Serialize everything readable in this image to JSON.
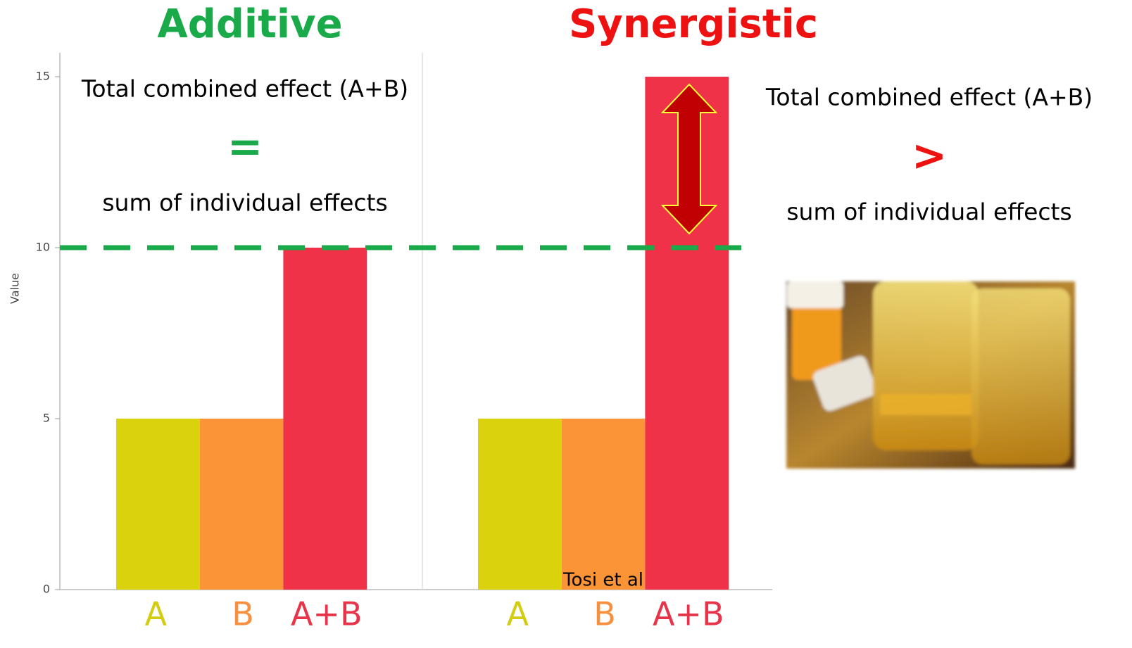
{
  "chart_data": {
    "type": "bar",
    "ylabel": "Value",
    "ylim": [
      0,
      15.7
    ],
    "yticks": [
      0,
      5,
      10,
      15
    ],
    "reference_line": 10,
    "reference_color": "#1aaa4a",
    "colors": [
      "#d9d20c",
      "#fb9337",
      "#ef3247"
    ],
    "label_colors": [
      "#d4cc10",
      "#f7903e",
      "#e8344a"
    ],
    "panels": [
      {
        "title": "Additive",
        "title_color": "#1aaa4a",
        "categories": [
          "A",
          "B",
          "A+B"
        ],
        "values": [
          5,
          5,
          10
        ],
        "annotation": {
          "top": "Total combined effect (A+B)",
          "symbol": "=",
          "bottom": "sum of individual effects"
        }
      },
      {
        "title": "Synergistic",
        "title_color": "#ee1111",
        "categories": [
          "A",
          "B",
          "A+B"
        ],
        "values": [
          5,
          5,
          15
        ],
        "annotation": {
          "top": "Total combined effect (A+B)",
          "symbol": ">",
          "bottom": "sum of individual effects"
        }
      }
    ],
    "source": "Tosi et al"
  }
}
